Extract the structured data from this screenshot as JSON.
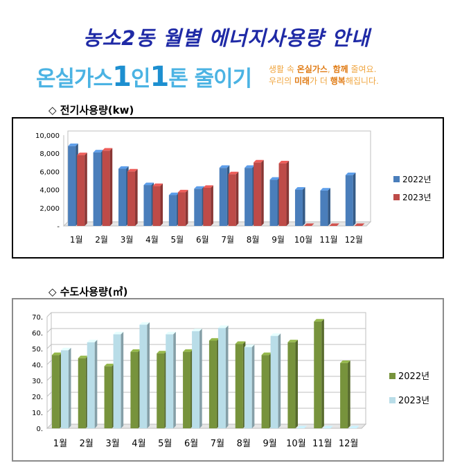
{
  "page": {
    "title": "농소2동 월별 에너지사용량 안내",
    "slogan_pre": "온실가스",
    "slogan_n1": "1",
    "slogan_mid": "인",
    "slogan_n2": "1",
    "slogan_post": "톤 줄이기",
    "slogan_sub1_a": "생활 속 ",
    "slogan_sub1_b": "온실가스",
    "slogan_sub1_c": ", ",
    "slogan_sub1_d": "함께",
    "slogan_sub1_e": " 줄여요.",
    "slogan_sub2_a": "우리의 ",
    "slogan_sub2_b": "미래",
    "slogan_sub2_c": "가 더 ",
    "slogan_sub2_d": "행복",
    "slogan_sub2_e": "해집니다."
  },
  "sections": {
    "electric_title": "◇ 전기사용량(kw)",
    "water_title": "◇ 수도사용량(㎥)"
  },
  "chart_data": [
    {
      "type": "bar",
      "categories": [
        "1월",
        "2월",
        "3월",
        "4월",
        "5월",
        "6월",
        "7월",
        "8월",
        "9월",
        "10월",
        "11월",
        "12월"
      ],
      "series": [
        {
          "name": "2022년",
          "color": "#4a7ebb",
          "values": [
            8800,
            8100,
            6300,
            4500,
            3400,
            4100,
            6400,
            6400,
            5100,
            4000,
            3900,
            5600
          ]
        },
        {
          "name": "2023년",
          "color": "#be4b48",
          "values": [
            7800,
            8300,
            6000,
            4400,
            3700,
            4200,
            5700,
            7000,
            6900,
            0,
            0,
            0
          ]
        }
      ],
      "yticks": [
        "-",
        "2,000",
        "4,000",
        "6,000",
        "8,000",
        "10,000"
      ],
      "ylim": [
        0,
        10000
      ],
      "grid": false,
      "legend": "right"
    },
    {
      "type": "bar",
      "categories": [
        "1월",
        "2월",
        "3월",
        "4월",
        "5월",
        "6월",
        "7월",
        "8월",
        "9월",
        "10월",
        "11월",
        "12월"
      ],
      "series": [
        {
          "name": "2022년",
          "color": "#77933c",
          "values": [
            46,
            44,
            39,
            48,
            47,
            48,
            55,
            53,
            46,
            54,
            67,
            41
          ]
        },
        {
          "name": "2023년",
          "color": "#b9dde8",
          "values": [
            49,
            54,
            59,
            65,
            59,
            61,
            63,
            51,
            58,
            0,
            0,
            0
          ]
        }
      ],
      "yticks": [
        "0.",
        "10.",
        "20.",
        "30.",
        "40.",
        "50.",
        "60.",
        "70."
      ],
      "ylim": [
        0,
        70
      ],
      "grid": true,
      "legend": "right"
    }
  ]
}
